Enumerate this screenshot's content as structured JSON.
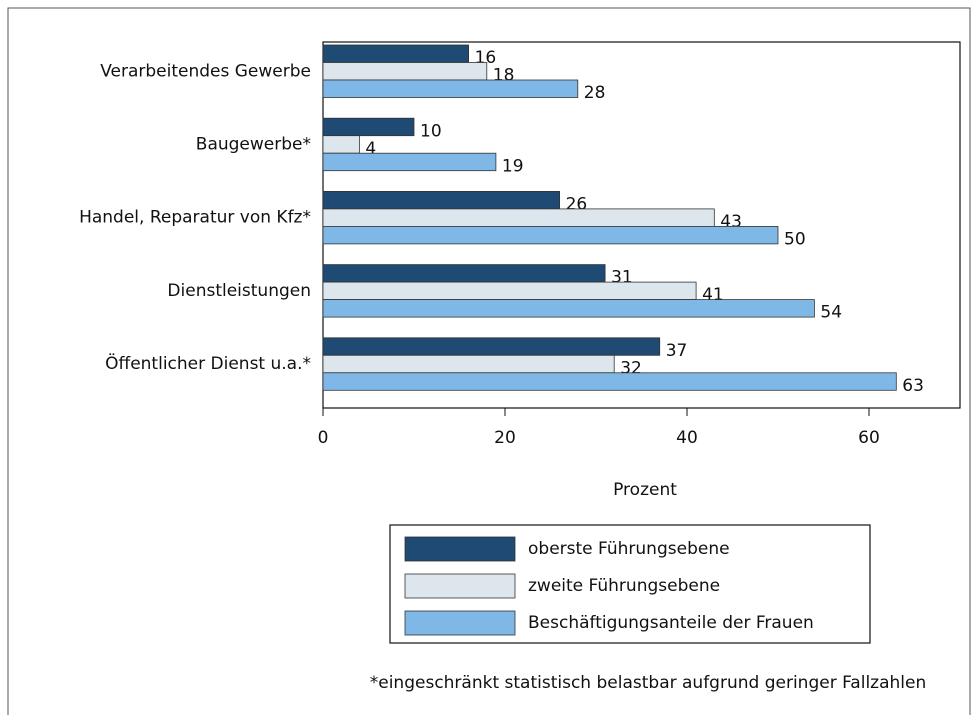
{
  "chart_data": {
    "type": "bar",
    "orientation": "horizontal",
    "categories": [
      "Verarbeitendes Gewerbe",
      "Baugewerbe*",
      "Handel, Reparatur von Kfz*",
      "Dienstleistungen",
      "Öffentlicher Dienst u.a.*"
    ],
    "series": [
      {
        "name": "oberste Führungsebene",
        "color": "#1f4a73",
        "values": [
          16,
          10,
          26,
          31,
          37
        ]
      },
      {
        "name": "zweite Führungsebene",
        "color": "#dde6ec",
        "values": [
          18,
          4,
          43,
          41,
          32
        ]
      },
      {
        "name": "Beschäftigungsanteile der Frauen",
        "color": "#7fb8e6",
        "values": [
          28,
          19,
          50,
          54,
          63
        ]
      }
    ],
    "xlim": [
      0,
      70
    ],
    "xticks": [
      0,
      20,
      40,
      60
    ],
    "xlabel": "Prozent",
    "footnote": "*eingeschränkt statistisch belastbar aufgrund geringer Fallzahlen"
  }
}
